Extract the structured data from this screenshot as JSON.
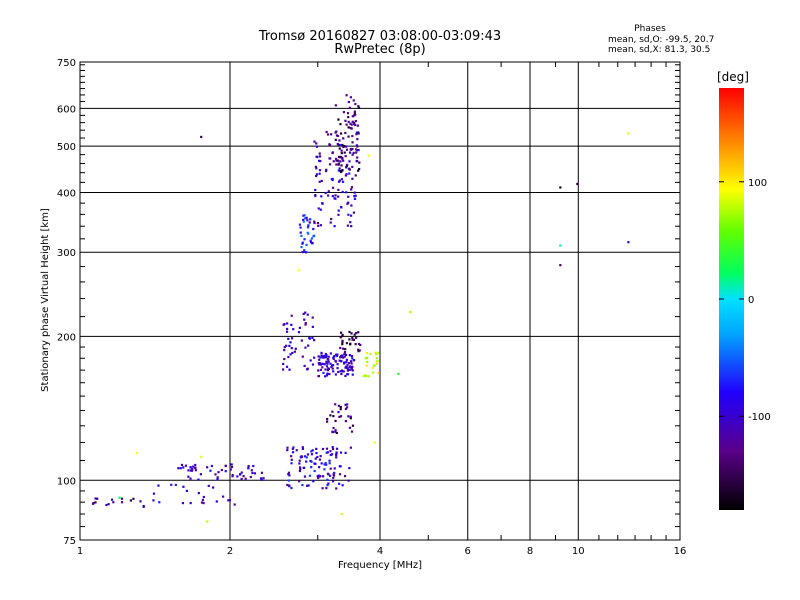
{
  "chart_data": {
    "type": "scatter",
    "title": "Tromsø 20160827 03:08:00-03:09:43",
    "subtitle": "RwPretec (8p)",
    "xlabel": "Frequency [MHz]",
    "ylabel": "Stationary phase Virtual Height [km]",
    "x_scale": "log",
    "y_scale": "log",
    "xlim": [
      1,
      16
    ],
    "ylim": [
      75,
      750
    ],
    "x_ticks": [
      1,
      2,
      4,
      6,
      8,
      10,
      16
    ],
    "x_tick_labels": [
      "1",
      "2",
      "4",
      "6",
      "8",
      "10",
      "16"
    ],
    "y_ticks": [
      75,
      100,
      200,
      300,
      400,
      500,
      600,
      750
    ],
    "y_tick_labels": [
      "75",
      "100",
      "200",
      "300",
      "400",
      "500",
      "600",
      "750"
    ],
    "grid": true,
    "stats": {
      "heading": "Phases",
      "line1": "mean, sd,O: -99.5, 20.7",
      "line2": "mean, sd,X:  81.3, 30.5"
    },
    "colorbar": {
      "label": "[deg]",
      "range": [
        -180,
        180
      ],
      "ticks": [
        100,
        0,
        -100
      ],
      "tick_labels": [
        "100",
        "0",
        "-100"
      ]
    },
    "clusters": [
      {
        "x": [
          2.6,
          3.5
        ],
        "y": [
          96,
          118
        ],
        "n": 110,
        "phase": [
          -130,
          -60
        ],
        "seed": 11
      },
      {
        "x": [
          1.55,
          2.35
        ],
        "y": [
          100,
          108
        ],
        "n": 55,
        "phase": [
          -130,
          -70
        ],
        "seed": 12
      },
      {
        "x": [
          1.05,
          1.35
        ],
        "y": [
          88,
          92
        ],
        "n": 16,
        "phase": [
          -160,
          -90
        ],
        "seed": 13
      },
      {
        "x": [
          1.4,
          2.05
        ],
        "y": [
          89,
          98
        ],
        "n": 22,
        "phase": [
          -140,
          -70
        ],
        "seed": 14
      },
      {
        "x": [
          2.55,
          2.95
        ],
        "y": [
          170,
          225
        ],
        "n": 50,
        "phase": [
          -130,
          -80
        ],
        "seed": 15
      },
      {
        "x": [
          3.0,
          3.55
        ],
        "y": [
          165,
          185
        ],
        "n": 110,
        "phase": [
          -130,
          -70
        ],
        "seed": 16
      },
      {
        "x": [
          3.3,
          3.65
        ],
        "y": [
          185,
          205
        ],
        "n": 30,
        "phase": [
          -170,
          -120
        ],
        "seed": 17
      },
      {
        "x": [
          3.1,
          3.55
        ],
        "y": [
          125,
          145
        ],
        "n": 30,
        "phase": [
          -170,
          -100
        ],
        "seed": 18
      },
      {
        "x": [
          2.75,
          2.95
        ],
        "y": [
          300,
          360
        ],
        "n": 35,
        "phase": [
          -110,
          -40
        ],
        "seed": 19
      },
      {
        "x": [
          2.95,
          3.6
        ],
        "y": [
          340,
          560
        ],
        "n": 120,
        "phase": [
          -140,
          -70
        ],
        "seed": 20
      },
      {
        "x": [
          3.25,
          3.65
        ],
        "y": [
          440,
          640
        ],
        "n": 80,
        "phase": [
          -170,
          -110
        ],
        "seed": 21
      },
      {
        "x": [
          3.7,
          4.0
        ],
        "y": [
          165,
          185
        ],
        "n": 22,
        "phase": [
          70,
          115
        ],
        "seed": 22
      }
    ],
    "points": [
      {
        "x": 1.75,
        "y": 523,
        "phase": -140
      },
      {
        "x": 1.3,
        "y": 114,
        "phase": 95
      },
      {
        "x": 1.75,
        "y": 112,
        "phase": 90
      },
      {
        "x": 1.8,
        "y": 82,
        "phase": 80
      },
      {
        "x": 1.2,
        "y": 92,
        "phase": 20
      },
      {
        "x": 2.75,
        "y": 275,
        "phase": 95
      },
      {
        "x": 4.6,
        "y": 225,
        "phase": 80
      },
      {
        "x": 4.35,
        "y": 167,
        "phase": 40
      },
      {
        "x": 3.8,
        "y": 478,
        "phase": 95
      },
      {
        "x": 3.35,
        "y": 85,
        "phase": 85
      },
      {
        "x": 9.2,
        "y": 410,
        "phase": -170
      },
      {
        "x": 9.95,
        "y": 417,
        "phase": -150
      },
      {
        "x": 9.2,
        "y": 310,
        "phase": 10
      },
      {
        "x": 9.2,
        "y": 282,
        "phase": -140
      },
      {
        "x": 12.6,
        "y": 315,
        "phase": -90
      },
      {
        "x": 12.6,
        "y": 532,
        "phase": 100
      },
      {
        "x": 3.9,
        "y": 120,
        "phase": 90
      }
    ]
  }
}
